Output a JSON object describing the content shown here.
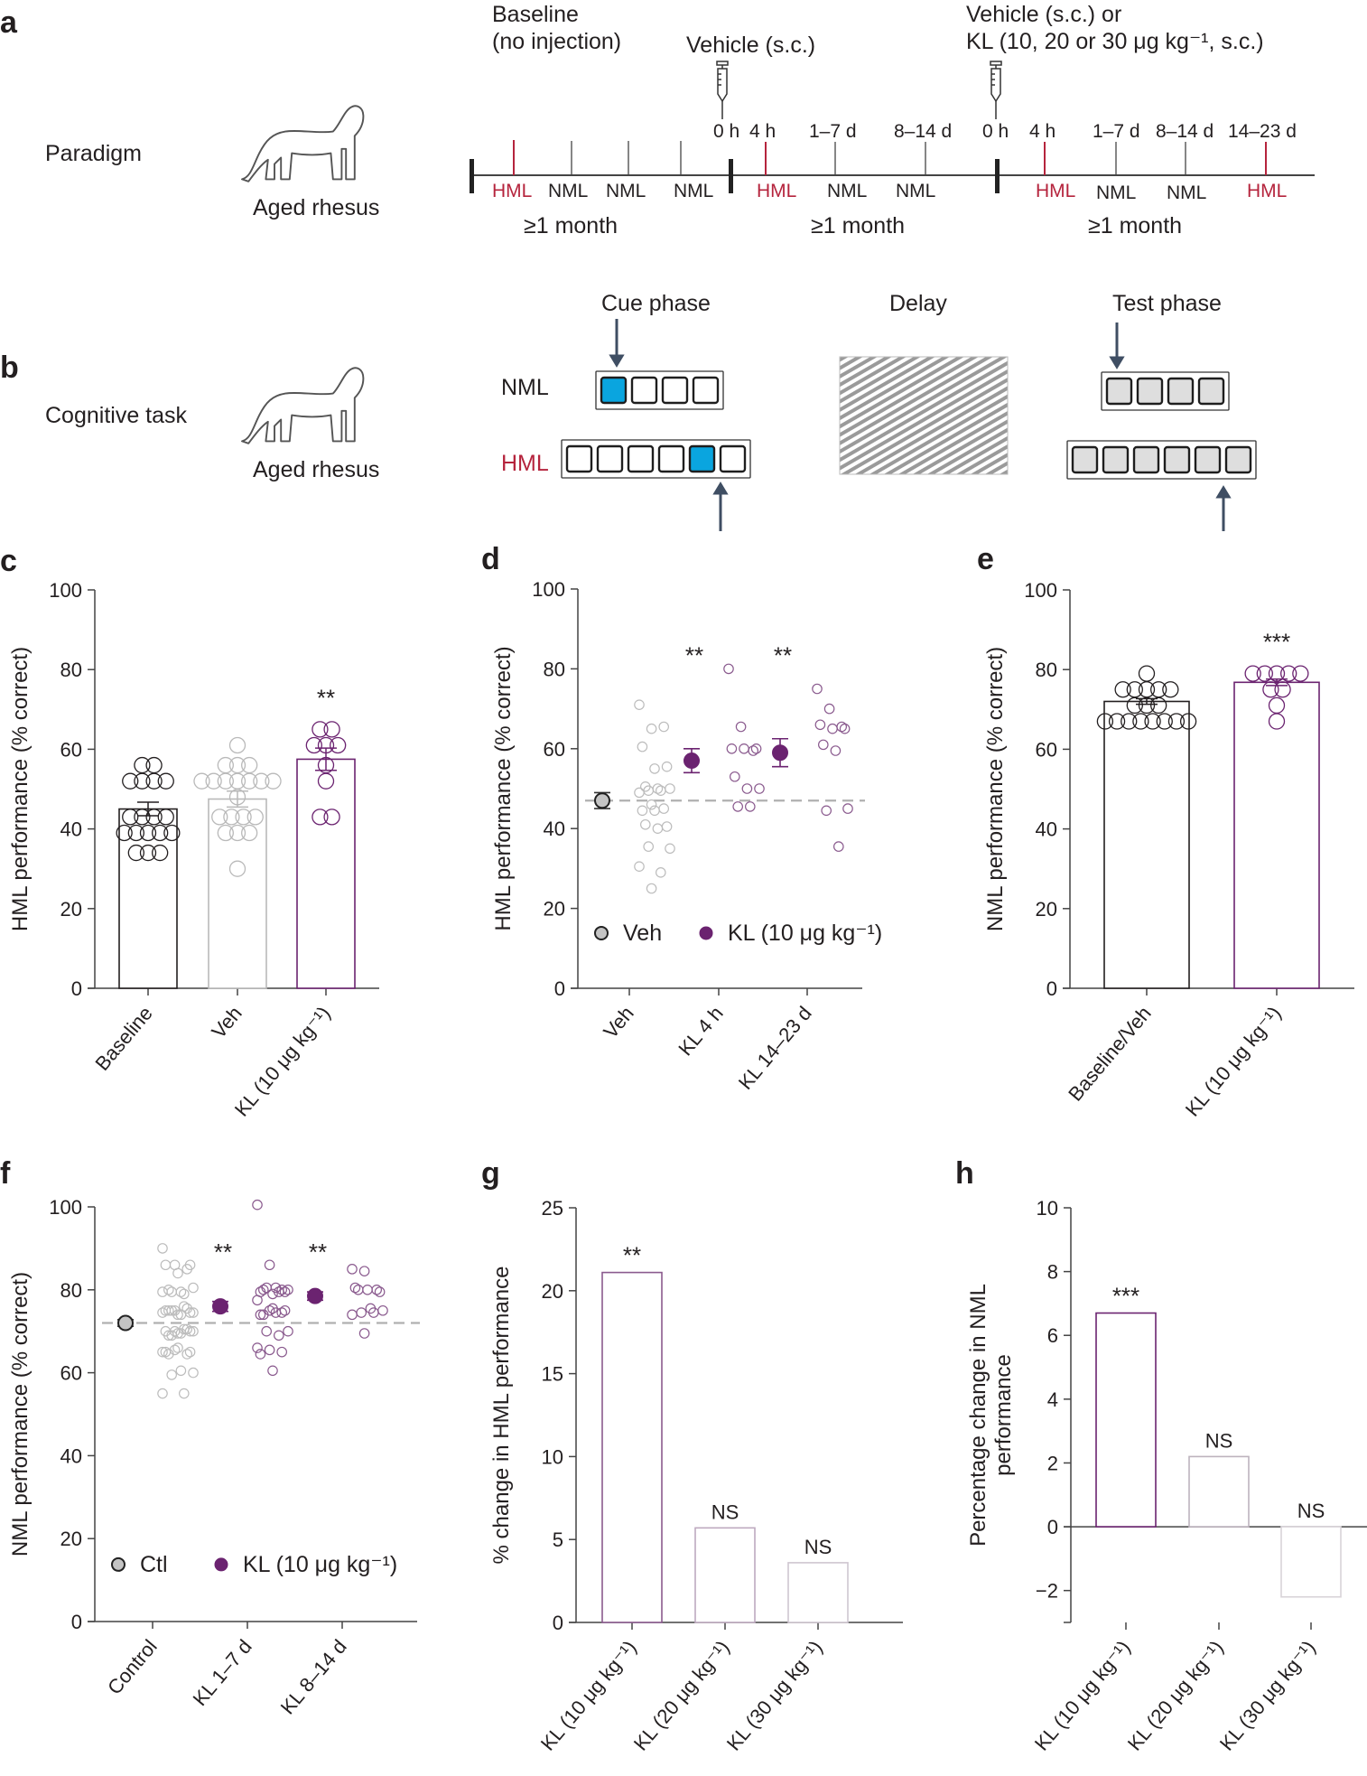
{
  "colors": {
    "hml_red": "#b5243d",
    "kl_purple": "#6b2370",
    "kl_light": "#8a5a8e",
    "veh_gray": "#b9b9b9",
    "cue_blue": "#0aa5df",
    "arrow_slate": "#3f4e63"
  },
  "panel_a": {
    "letter": "a",
    "row_label": "Paradigm",
    "subject": "Aged rhesus",
    "icons": [
      "monkey-icon",
      "syringe-icon",
      "syringe-icon"
    ],
    "headers": {
      "baseline_line1": "Baseline",
      "baseline_line2": "(no injection)",
      "vehicle": "Vehicle (s.c.)",
      "treatment_line1": "Vehicle (s.c.) or",
      "treatment_line2": "KL (10, 20 or 30 μg kg⁻¹, s.c.)"
    },
    "segments": [
      {
        "ticks": [
          {
            "type": "HML"
          },
          {
            "type": "NML"
          },
          {
            "type": "NML"
          },
          {
            "type": "NML"
          }
        ],
        "duration": "≥1 month"
      },
      {
        "times": [
          "0 h",
          "4 h",
          "1–7 d",
          "8–14 d"
        ],
        "ticks": [
          {
            "type": "HML"
          },
          {
            "type": "NML"
          },
          {
            "type": "NML"
          }
        ],
        "duration": "≥1 month"
      },
      {
        "times": [
          "0 h",
          "4 h",
          "1–7 d",
          "8–14 d",
          "14–23 d"
        ],
        "ticks": [
          {
            "type": "HML"
          },
          {
            "type": "NML"
          },
          {
            "type": "NML"
          },
          {
            "type": "HML"
          }
        ],
        "duration": "≥1 month"
      }
    ]
  },
  "panel_b": {
    "letter": "b",
    "row_label": "Cognitive task",
    "subject": "Aged rhesus",
    "phases": [
      "Cue phase",
      "Delay",
      "Test phase"
    ],
    "conditions": [
      {
        "label": "NML",
        "boxes": 4,
        "cued_index": 0
      },
      {
        "label": "HML",
        "boxes": 6,
        "cued_index": 4
      }
    ]
  },
  "chart_data": [
    {
      "panel": "c",
      "type": "bar",
      "ylabel": "HML performance (% correct)",
      "ylim": [
        0,
        100
      ],
      "yticks": [
        0,
        20,
        40,
        60,
        80,
        100
      ],
      "categories": [
        "Baseline",
        "Veh",
        "KL (10 μg kg⁻¹)"
      ],
      "values": [
        45,
        47.5,
        57.5
      ],
      "sem": [
        1.7,
        2.0,
        2.8
      ],
      "colors": [
        "#231f20",
        "#b9b9b9",
        "#6b2370"
      ],
      "points": [
        [
          56,
          56,
          52,
          52,
          52,
          52,
          43,
          43,
          43,
          43,
          39,
          39,
          39,
          39,
          39,
          34,
          34,
          34
        ],
        [
          61,
          56,
          56,
          56,
          52,
          52,
          52,
          52,
          52,
          52,
          52,
          48,
          43,
          43,
          43,
          43,
          39,
          39,
          39,
          30
        ],
        [
          65,
          65,
          61,
          61,
          61,
          56,
          52,
          43,
          43
        ]
      ],
      "annotations": [
        "",
        "",
        "**"
      ]
    },
    {
      "panel": "d",
      "type": "scatter",
      "ylabel": "HML performance (% correct)",
      "ylim": [
        0,
        100
      ],
      "yticks": [
        0,
        20,
        40,
        60,
        80,
        100
      ],
      "categories": [
        "Veh",
        "KL 4 h",
        "KL 14–23 d"
      ],
      "means": [
        47,
        57,
        59
      ],
      "sem": [
        2,
        3,
        3.5
      ],
      "reference_line": 47,
      "points": [
        [
          71,
          65,
          65.5,
          60.5,
          55,
          55.5,
          50.5,
          50,
          50,
          49.5,
          49.5,
          49,
          46,
          45,
          44.5,
          44.5,
          40.5,
          41,
          40,
          35,
          35.5,
          29,
          30.5,
          25
        ],
        [
          80,
          65.5,
          59.5,
          60,
          60,
          60,
          53,
          50,
          50,
          45.5,
          45.5
        ],
        [
          75,
          70,
          65.5,
          66,
          65,
          65,
          61,
          59.5,
          45,
          44.5,
          35.5
        ]
      ],
      "annotations": [
        "",
        "**",
        "**"
      ],
      "legend": [
        {
          "label": "Veh",
          "color": "#b9b9b9"
        },
        {
          "label": "KL (10 μg kg⁻¹)",
          "color": "#6b2370"
        }
      ],
      "legend_position": "bottom"
    },
    {
      "panel": "e",
      "type": "bar",
      "ylabel": "NML performance (% correct)",
      "ylim": [
        0,
        100
      ],
      "yticks": [
        0,
        20,
        40,
        60,
        80,
        100
      ],
      "categories": [
        "Baseline/Veh",
        "KL (10 μg kg⁻¹)"
      ],
      "values": [
        72,
        76.8
      ],
      "sem": [
        0.7,
        0.8
      ],
      "colors": [
        "#231f20",
        "#6b2370"
      ],
      "points": [
        [
          79,
          75,
          75,
          75,
          75,
          75,
          71,
          71,
          71,
          67,
          67,
          67,
          67,
          67,
          67,
          67,
          67
        ],
        [
          79,
          79,
          79,
          79,
          79,
          75,
          75,
          71,
          67
        ]
      ],
      "annotations": [
        "",
        "***"
      ]
    },
    {
      "panel": "f",
      "type": "scatter",
      "ylabel": "NML performance (% correct)",
      "ylim": [
        0,
        100
      ],
      "yticks": [
        0,
        20,
        40,
        60,
        80,
        100
      ],
      "categories": [
        "Control",
        "KL 1–7 d",
        "KL 8–14 d"
      ],
      "means": [
        72,
        76,
        78.5
      ],
      "sem": [
        0.8,
        1.2,
        1.0
      ],
      "reference_line": 72,
      "points": [
        [
          90,
          86,
          85,
          86,
          84,
          86,
          80,
          79.5,
          80.5,
          79.5,
          79,
          79.5,
          75,
          75.5,
          75,
          74,
          74.5,
          75,
          74,
          74.5,
          75,
          76,
          74.5,
          70,
          70.5,
          70,
          69.5,
          70,
          69,
          69.5,
          70,
          69,
          70.5,
          65,
          65.5,
          64.5,
          65,
          66,
          65,
          64.5,
          60.5,
          60,
          59.5,
          55,
          55
        ],
        [
          100.5,
          86,
          80,
          79.5,
          79,
          79.5,
          80,
          80.5,
          80,
          80.5,
          79.5,
          77.5,
          75,
          74.5,
          74,
          75.5,
          75,
          74,
          74.5,
          70,
          70,
          69,
          66,
          65.5,
          65,
          64.5,
          60.5
        ],
        [
          85,
          84.5,
          80,
          80.5,
          80,
          79.5,
          80,
          75.5,
          75,
          74.5,
          74.5,
          74,
          69.5
        ]
      ],
      "annotations": [
        "",
        "**",
        "**"
      ],
      "legend": [
        {
          "label": "Ctl",
          "color": "#b9b9b9"
        },
        {
          "label": "KL (10 μg kg⁻¹)",
          "color": "#6b2370"
        }
      ],
      "legend_position": "bottom"
    },
    {
      "panel": "g",
      "type": "bar",
      "ylabel": "% change in HML performance",
      "ylim": [
        0,
        25
      ],
      "yticks": [
        0,
        5,
        10,
        15,
        20,
        25
      ],
      "categories": [
        "KL (10 μg kg⁻¹)",
        "KL (20 μg kg⁻¹)",
        "KL (30 μg kg⁻¹)"
      ],
      "values": [
        21.1,
        5.7,
        3.6
      ],
      "colors": [
        "#8a5a8e",
        "#bda9bf",
        "#cfc6d0"
      ],
      "annotations": [
        "**",
        "NS",
        "NS"
      ]
    },
    {
      "panel": "h",
      "type": "bar",
      "ylabel": "Percentage change in NML performance",
      "ylim": [
        -3,
        10
      ],
      "yticks": [
        -2,
        0,
        2,
        4,
        6,
        8,
        10
      ],
      "categories": [
        "KL (10 μg kg⁻¹)",
        "KL (20 μg kg⁻¹)",
        "KL (30 μg kg⁻¹)"
      ],
      "values": [
        6.7,
        2.2,
        -2.2
      ],
      "colors": [
        "#6b2370",
        "#bdb3be",
        "#d8d3d8"
      ],
      "annotations": [
        "***",
        "NS",
        "NS"
      ]
    }
  ]
}
